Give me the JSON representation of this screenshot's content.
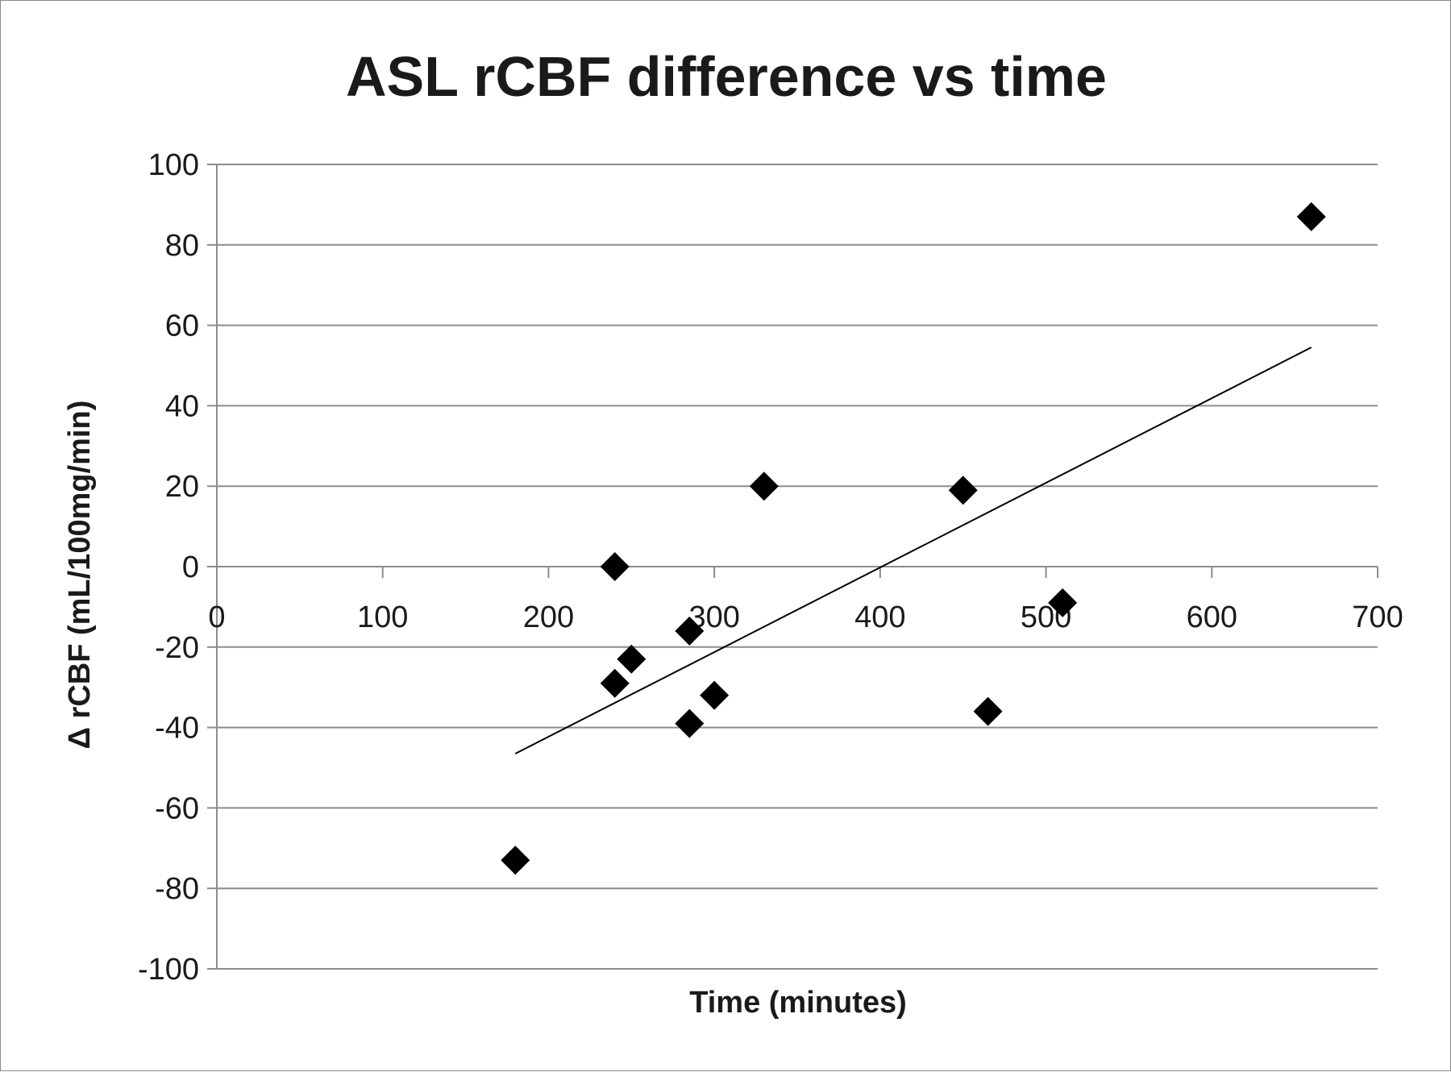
{
  "chart_data": {
    "type": "scatter",
    "title": "ASL rCBF difference vs time",
    "xlabel": "Time (minutes)",
    "ylabel": "Δ rCBF (mL/100mg/min)",
    "xlim": [
      0,
      700
    ],
    "ylim": [
      -100,
      100
    ],
    "x_ticks": [
      0,
      100,
      200,
      300,
      400,
      500,
      600,
      700
    ],
    "y_ticks": [
      100,
      80,
      60,
      40,
      20,
      0,
      -20,
      -40,
      -60,
      -80,
      -100
    ],
    "x_tick_labels": [
      "0",
      "100",
      "200",
      "300",
      "400",
      "500",
      "600",
      "700"
    ],
    "y_tick_labels": [
      "100",
      "80",
      "60",
      "40",
      "20",
      "0",
      "-20",
      "-40",
      "-60",
      "-80",
      "-100"
    ],
    "grid": true,
    "legend": false,
    "marker": "diamond",
    "marker_color": "#000000",
    "series": [
      {
        "points": [
          {
            "x": 180,
            "y": -73
          },
          {
            "x": 240,
            "y": 0
          },
          {
            "x": 240,
            "y": -29
          },
          {
            "x": 250,
            "y": -23
          },
          {
            "x": 285,
            "y": -16
          },
          {
            "x": 285,
            "y": -39
          },
          {
            "x": 300,
            "y": -32
          },
          {
            "x": 330,
            "y": 20
          },
          {
            "x": 450,
            "y": 19
          },
          {
            "x": 465,
            "y": -36
          },
          {
            "x": 510,
            "y": -9
          },
          {
            "x": 660,
            "y": 87
          }
        ]
      }
    ],
    "trendline": {
      "type": "linear",
      "x": [
        180,
        660
      ],
      "y": [
        -46.5,
        54.5
      ]
    }
  }
}
